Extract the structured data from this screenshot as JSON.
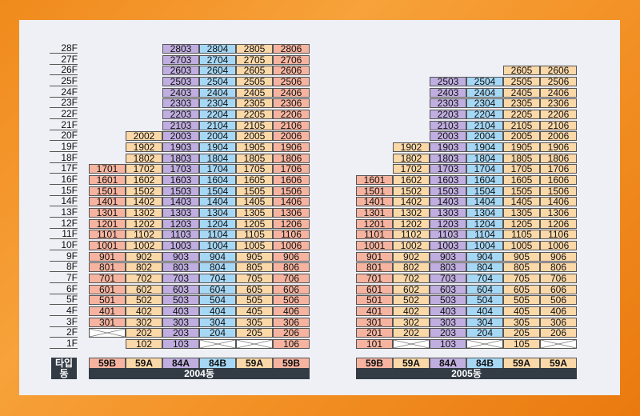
{
  "floors": [
    "28F",
    "27F",
    "26F",
    "25F",
    "24F",
    "23F",
    "22F",
    "21F",
    "20F",
    "19F",
    "18F",
    "17F",
    "16F",
    "15F",
    "14F",
    "13F",
    "12F",
    "11F",
    "10F",
    "9F",
    "8F",
    "7F",
    "6F",
    "5F",
    "4F",
    "3F",
    "2F",
    "1F"
  ],
  "legend": {
    "type_label": "타입",
    "building_label": "동"
  },
  "colors": {
    "59B": "#f6b4a0",
    "59A": "#fbd8a8",
    "84A": "#c0aee0",
    "84B": "#a6d8f6"
  },
  "buildings": [
    {
      "name": "2004동",
      "types": [
        "59B",
        "59A",
        "84A",
        "84B",
        "59A",
        "59B"
      ],
      "units": {
        "28": [
          "",
          "",
          "2803",
          "2804",
          "2805",
          "2806"
        ],
        "27": [
          "",
          "",
          "2703",
          "2704",
          "2705",
          "2706"
        ],
        "26": [
          "",
          "",
          "2603",
          "2604",
          "2605",
          "2606"
        ],
        "25": [
          "",
          "",
          "2503",
          "2504",
          "2505",
          "2506"
        ],
        "24": [
          "",
          "",
          "2403",
          "2404",
          "2405",
          "2406"
        ],
        "23": [
          "",
          "",
          "2303",
          "2304",
          "2305",
          "2306"
        ],
        "22": [
          "",
          "",
          "2203",
          "2204",
          "2205",
          "2206"
        ],
        "21": [
          "",
          "",
          "2103",
          "2104",
          "2105",
          "2106"
        ],
        "20": [
          "",
          "2002",
          "2003",
          "2004",
          "2005",
          "2006"
        ],
        "19": [
          "",
          "1902",
          "1903",
          "1904",
          "1905",
          "1906"
        ],
        "18": [
          "",
          "1802",
          "1803",
          "1804",
          "1805",
          "1806"
        ],
        "17": [
          "1701",
          "1702",
          "1703",
          "1704",
          "1705",
          "1706"
        ],
        "16": [
          "1601",
          "1602",
          "1603",
          "1604",
          "1605",
          "1606"
        ],
        "15": [
          "1501",
          "1502",
          "1503",
          "1504",
          "1505",
          "1506"
        ],
        "14": [
          "1401",
          "1402",
          "1403",
          "1404",
          "1405",
          "1406"
        ],
        "13": [
          "1301",
          "1302",
          "1303",
          "1304",
          "1305",
          "1306"
        ],
        "12": [
          "1201",
          "1202",
          "1203",
          "1204",
          "1205",
          "1206"
        ],
        "11": [
          "1101",
          "1102",
          "1103",
          "1104",
          "1105",
          "1106"
        ],
        "10": [
          "1001",
          "1002",
          "1003",
          "1004",
          "1005",
          "1006"
        ],
        "9": [
          "901",
          "902",
          "903",
          "904",
          "905",
          "906"
        ],
        "8": [
          "801",
          "802",
          "803",
          "804",
          "805",
          "806"
        ],
        "7": [
          "701",
          "702",
          "703",
          "704",
          "705",
          "706"
        ],
        "6": [
          "601",
          "602",
          "603",
          "604",
          "605",
          "606"
        ],
        "5": [
          "501",
          "502",
          "503",
          "504",
          "505",
          "506"
        ],
        "4": [
          "401",
          "402",
          "403",
          "404",
          "405",
          "406"
        ],
        "3": [
          "301",
          "302",
          "303",
          "304",
          "305",
          "306"
        ],
        "2": [
          "X",
          "202",
          "203",
          "204",
          "205",
          "206"
        ],
        "1": [
          "",
          "102",
          "103",
          "X",
          "X",
          "106"
        ]
      }
    },
    {
      "name": "2005동",
      "types": [
        "59B",
        "59A",
        "84A",
        "84B",
        "59A",
        "59A"
      ],
      "units": {
        "26": [
          "",
          "",
          "",
          "",
          "2605",
          "2606"
        ],
        "25": [
          "",
          "",
          "2503",
          "2504",
          "2505",
          "2506"
        ],
        "24": [
          "",
          "",
          "2403",
          "2404",
          "2405",
          "2406"
        ],
        "23": [
          "",
          "",
          "2303",
          "2304",
          "2305",
          "2306"
        ],
        "22": [
          "",
          "",
          "2203",
          "2204",
          "2205",
          "2206"
        ],
        "21": [
          "",
          "",
          "2103",
          "2104",
          "2105",
          "2106"
        ],
        "20": [
          "",
          "",
          "2003",
          "2004",
          "2005",
          "2006"
        ],
        "19": [
          "",
          "1902",
          "1903",
          "1904",
          "1905",
          "1906"
        ],
        "18": [
          "",
          "1802",
          "1803",
          "1804",
          "1805",
          "1806"
        ],
        "17": [
          "",
          "1702",
          "1703",
          "1704",
          "1705",
          "1706"
        ],
        "16": [
          "1601",
          "1602",
          "1603",
          "1604",
          "1605",
          "1606"
        ],
        "15": [
          "1501",
          "1502",
          "1503",
          "1504",
          "1505",
          "1506"
        ],
        "14": [
          "1401",
          "1402",
          "1403",
          "1404",
          "1405",
          "1406"
        ],
        "13": [
          "1301",
          "1302",
          "1303",
          "1304",
          "1305",
          "1306"
        ],
        "12": [
          "1201",
          "1202",
          "1203",
          "1204",
          "1205",
          "1206"
        ],
        "11": [
          "1101",
          "1102",
          "1103",
          "1104",
          "1105",
          "1106"
        ],
        "10": [
          "1001",
          "1002",
          "1003",
          "1004",
          "1005",
          "1006"
        ],
        "9": [
          "901",
          "902",
          "903",
          "904",
          "905",
          "906"
        ],
        "8": [
          "801",
          "802",
          "803",
          "804",
          "805",
          "806"
        ],
        "7": [
          "701",
          "702",
          "703",
          "704",
          "705",
          "706"
        ],
        "6": [
          "601",
          "602",
          "603",
          "604",
          "605",
          "606"
        ],
        "5": [
          "501",
          "502",
          "503",
          "504",
          "505",
          "506"
        ],
        "4": [
          "401",
          "402",
          "403",
          "404",
          "405",
          "406"
        ],
        "3": [
          "301",
          "302",
          "303",
          "304",
          "305",
          "306"
        ],
        "2": [
          "201",
          "202",
          "203",
          "204",
          "205",
          "206"
        ],
        "1": [
          "101",
          "X",
          "103",
          "X",
          "105",
          "X"
        ]
      }
    }
  ]
}
